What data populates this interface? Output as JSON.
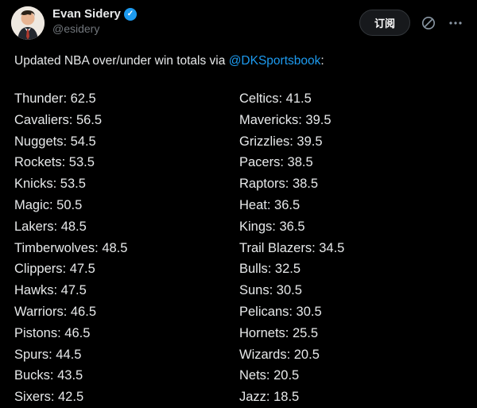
{
  "colors": {
    "background": "#000000",
    "text": "#e7e9ea",
    "muted": "#71767b",
    "accent_blue": "#1d9bf0"
  },
  "header": {
    "display_name": "Evan Sidery",
    "handle": "@esidery",
    "verified_icon": "verified-badge",
    "subscribe_label": "订阅",
    "grok_icon": "grok-icon",
    "more_icon": "more-ellipsis-icon"
  },
  "post": {
    "intro_prefix": "Updated NBA over/under win totals via ",
    "intro_link": "@DKSportsbook",
    "intro_suffix": ":"
  },
  "teams": {
    "left": [
      {
        "team": "Thunder",
        "total": "62.5"
      },
      {
        "team": "Cavaliers",
        "total": "56.5"
      },
      {
        "team": "Nuggets",
        "total": "54.5"
      },
      {
        "team": "Rockets",
        "total": "53.5"
      },
      {
        "team": "Knicks",
        "total": "53.5"
      },
      {
        "team": "Magic",
        "total": "50.5"
      },
      {
        "team": "Lakers",
        "total": "48.5"
      },
      {
        "team": "Timberwolves",
        "total": "48.5"
      },
      {
        "team": "Clippers",
        "total": "47.5"
      },
      {
        "team": "Hawks",
        "total": "47.5"
      },
      {
        "team": "Warriors",
        "total": "46.5"
      },
      {
        "team": "Pistons",
        "total": "46.5"
      },
      {
        "team": "Spurs",
        "total": "44.5"
      },
      {
        "team": "Bucks",
        "total": "43.5"
      },
      {
        "team": "Sixers",
        "total": "42.5"
      }
    ],
    "right": [
      {
        "team": "Celtics",
        "total": "41.5"
      },
      {
        "team": "Mavericks",
        "total": "39.5"
      },
      {
        "team": "Grizzlies",
        "total": "39.5"
      },
      {
        "team": "Pacers",
        "total": "38.5"
      },
      {
        "team": "Raptors",
        "total": "38.5"
      },
      {
        "team": "Heat",
        "total": "36.5"
      },
      {
        "team": "Kings",
        "total": "36.5"
      },
      {
        "team": "Trail Blazers",
        "total": "34.5"
      },
      {
        "team": "Bulls",
        "total": "32.5"
      },
      {
        "team": "Suns",
        "total": "30.5"
      },
      {
        "team": "Pelicans",
        "total": "30.5"
      },
      {
        "team": "Hornets",
        "total": "25.5"
      },
      {
        "team": "Wizards",
        "total": "20.5"
      },
      {
        "team": "Nets",
        "total": "20.5"
      },
      {
        "team": "Jazz",
        "total": "18.5"
      }
    ]
  }
}
